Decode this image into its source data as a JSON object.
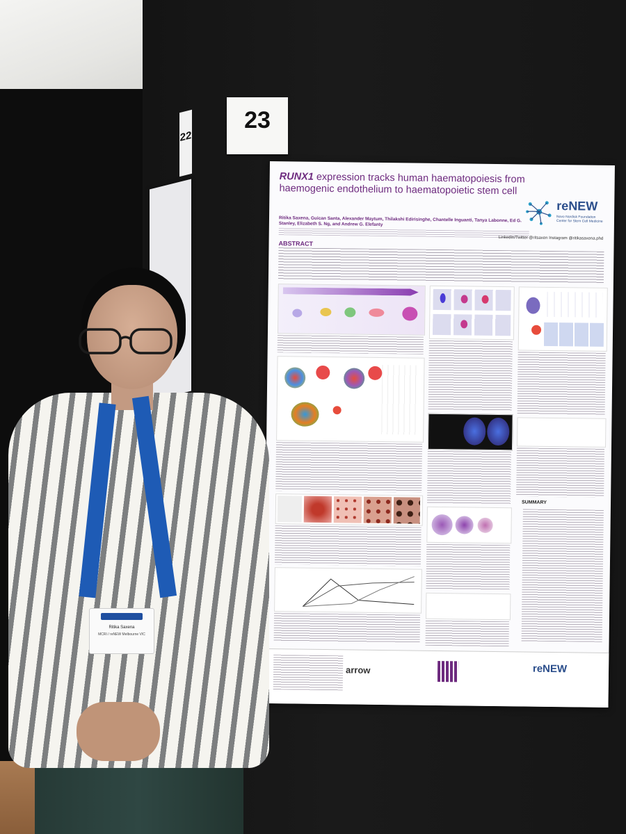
{
  "scene": {
    "board_number": "23",
    "neighbor_number": "22"
  },
  "poster": {
    "title_gene": "RUNX1",
    "title_rest": " expression tracks human haematopoiesis from haemogenic endothelium to haematopoietic stem cell",
    "authors": "Ritika Saxena, Guican Santa, Alexander Maytum, Thilakshi Edirisinghe, Chantelle Inguanti, Tanya Labonne, Ed G. Stanley, Elizabeth S. Ng, and Andrew G. Elefanty",
    "social": "LinkedIn/Twitter @ritsaxen Instagram @ritikasaxena.phd",
    "abstract_heading": "ABSTRACT",
    "summary_heading": "SUMMARY",
    "logo_word": "reNEW",
    "logo_sub": "Novo Nordisk Foundation Center for Stem Cell Medicine",
    "footer_arrow": "arrow",
    "footer_renew": "reNEW"
  },
  "badge": {
    "name": "Ritika Saxena",
    "org": "MCRI / reNEW Melbourne VIC"
  },
  "colors": {
    "poster_accent": "#6e2b7f",
    "renew_blue": "#2c4f8c",
    "lanyard_blue": "#1e5bb5"
  }
}
